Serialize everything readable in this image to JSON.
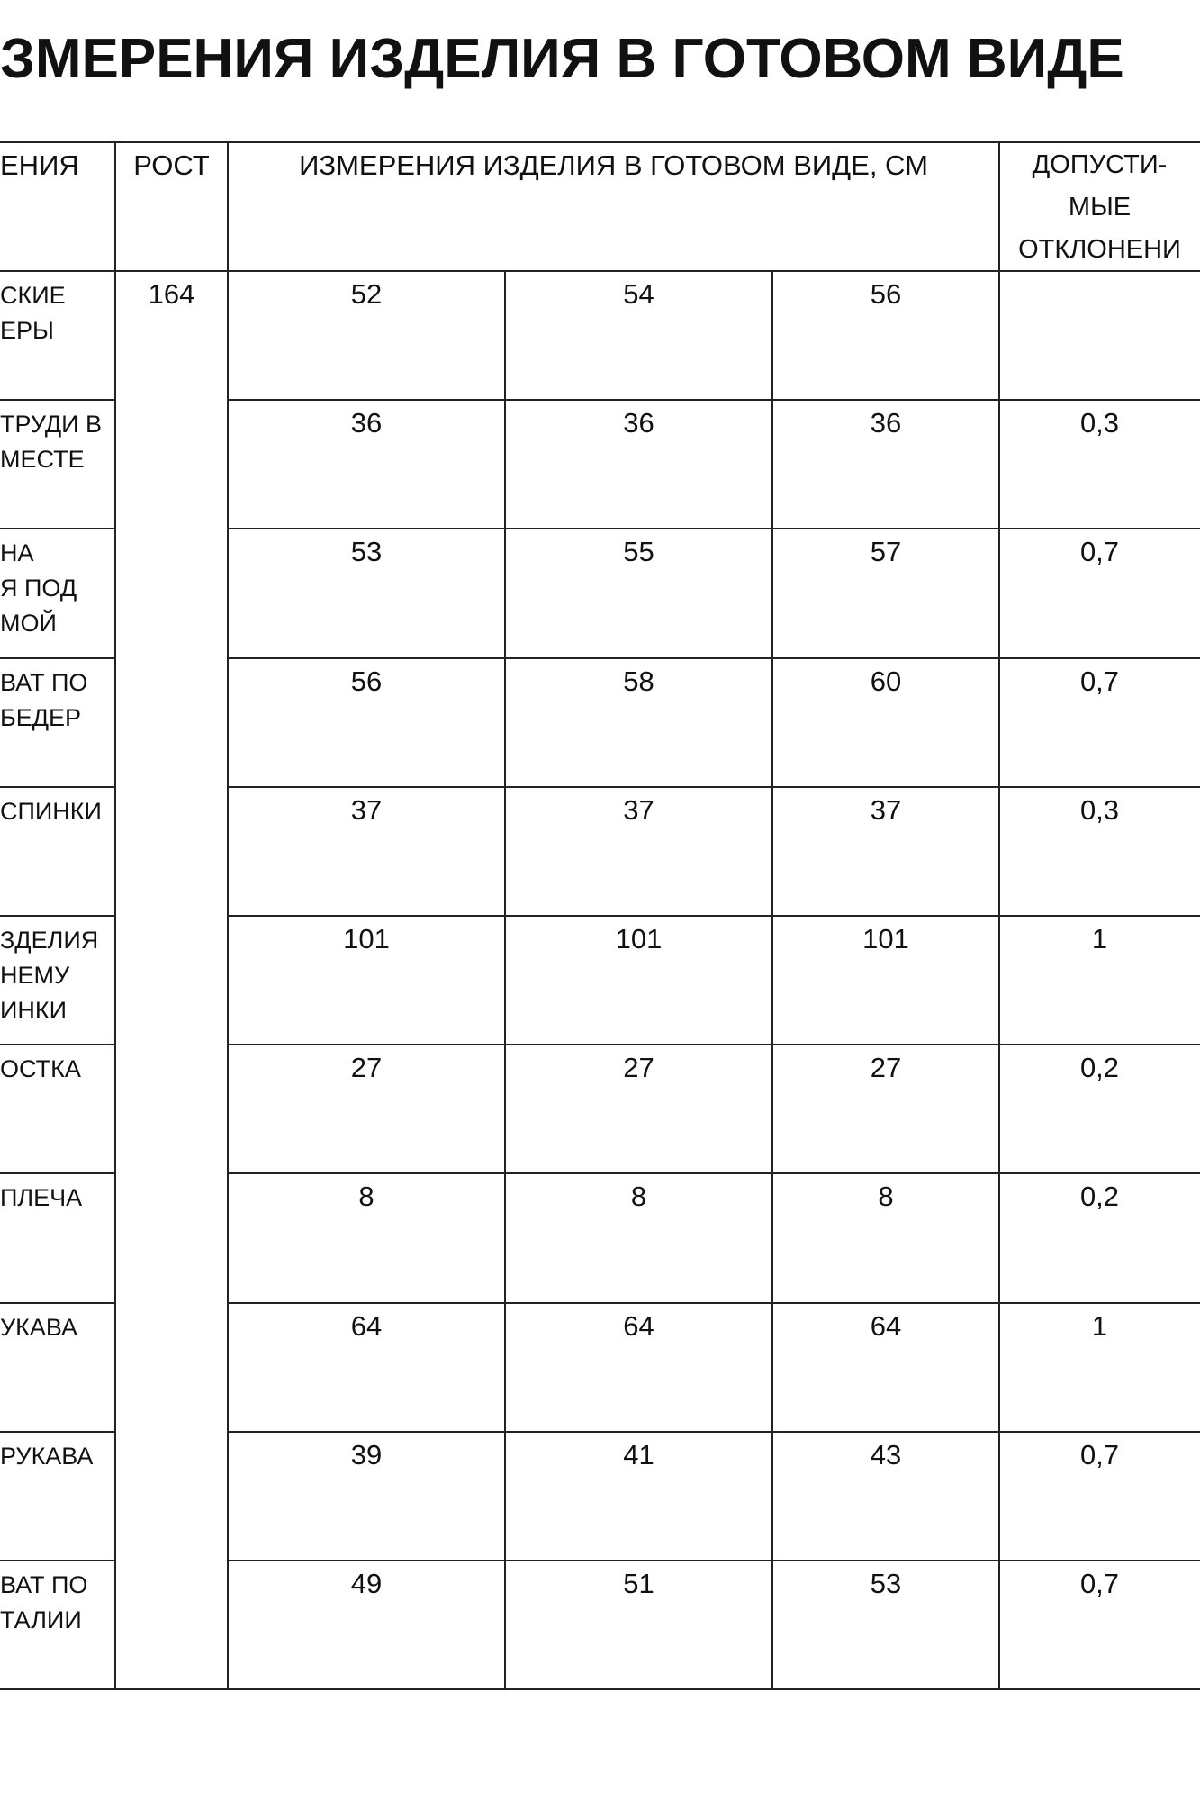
{
  "title": "ЗМЕРЕНИЯ ИЗДЕЛИЯ В ГОТОВОМ ВИДЕ",
  "table": {
    "header": {
      "name_col": [
        "ЕНИЯ"
      ],
      "height_col": [
        "РОСТ"
      ],
      "measures_col": [
        "ИЗМЕРЕНИЯ ИЗДЕЛИЯ В ГОТОВОМ ВИДЕ, СМ"
      ],
      "tolerance_col": [
        "ДОПУСТИ-",
        "МЫЕ",
        "ОТКЛОНЕНИ"
      ]
    },
    "height_value": "164",
    "rows": [
      {
        "label": [
          "СКИЕ",
          "ЕРЫ"
        ],
        "values": [
          "52",
          "54",
          "56"
        ],
        "tolerance": ""
      },
      {
        "label": [
          "ТРУДИ В",
          "МЕСТЕ"
        ],
        "values": [
          "36",
          "36",
          "36"
        ],
        "tolerance": "0,3"
      },
      {
        "label": [
          "НА",
          "Я ПОД",
          "МОЙ"
        ],
        "values": [
          "53",
          "55",
          "57"
        ],
        "tolerance": "0,7"
      },
      {
        "label": [
          "ВАТ ПО",
          "БЕДЕР"
        ],
        "values": [
          "56",
          "58",
          "60"
        ],
        "tolerance": "0,7"
      },
      {
        "label": [
          "СПИНКИ"
        ],
        "values": [
          "37",
          "37",
          "37"
        ],
        "tolerance": "0,3"
      },
      {
        "label": [
          "ЗДЕЛИЯ",
          "НЕМУ",
          "ИНКИ"
        ],
        "values": [
          "101",
          "101",
          "101"
        ],
        "tolerance": "1"
      },
      {
        "label": [
          "ОСТКА"
        ],
        "values": [
          "27",
          "27",
          "27"
        ],
        "tolerance": "0,2"
      },
      {
        "label": [
          "ПЛЕЧА"
        ],
        "values": [
          "8",
          "8",
          "8"
        ],
        "tolerance": "0,2"
      },
      {
        "label": [
          "УКАВА"
        ],
        "values": [
          "64",
          "64",
          "64"
        ],
        "tolerance": "1"
      },
      {
        "label": [
          "РУКАВА"
        ],
        "values": [
          "39",
          "41",
          "43"
        ],
        "tolerance": "0,7"
      },
      {
        "label": [
          "ВАТ ПО",
          "ТАЛИИ"
        ],
        "values": [
          "49",
          "51",
          "53"
        ],
        "tolerance": "0,7"
      }
    ]
  }
}
